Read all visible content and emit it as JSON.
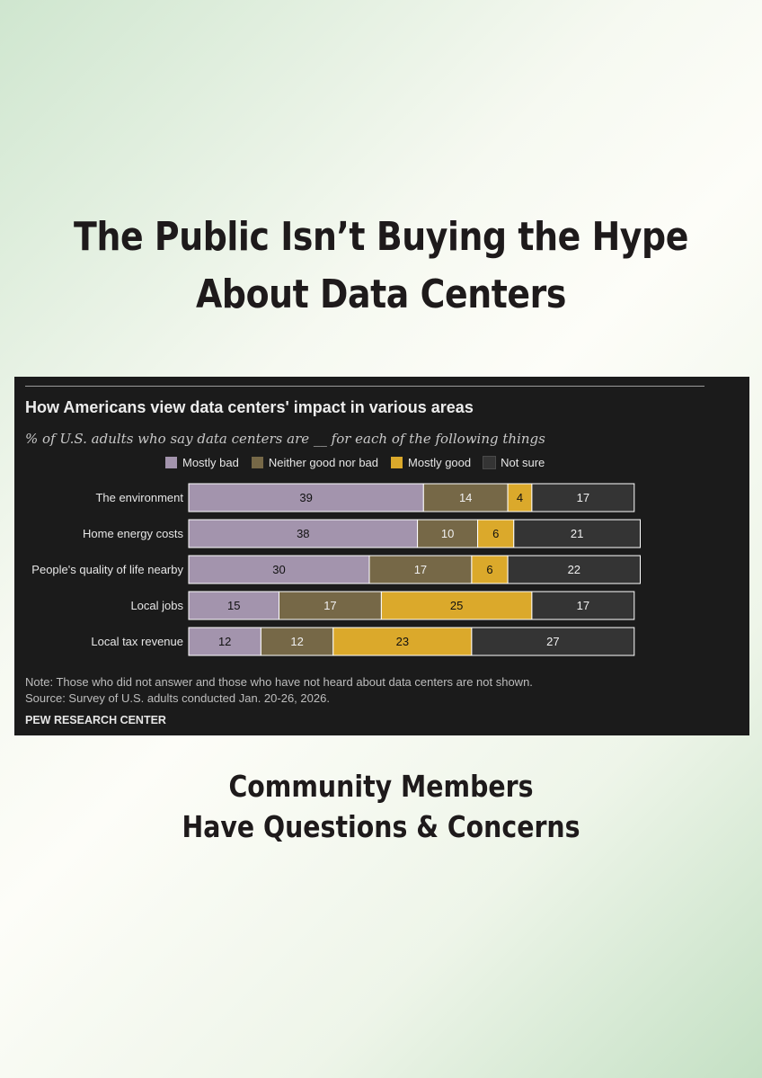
{
  "headline": {
    "line1": "The Public Isn’t Buying the Hype",
    "line2": "About Data Centers"
  },
  "subheadline": {
    "line1": "Community Members",
    "line2": "Have Questions & Concerns"
  },
  "chart_data": {
    "type": "bar",
    "orientation": "horizontal",
    "stacked": true,
    "title": "How Americans view data centers' impact in various areas",
    "subtitle": "% of U.S. adults who say data centers are __ for each of the following things",
    "categories": [
      "The environment",
      "Home energy costs",
      "People's quality of life nearby",
      "Local jobs",
      "Local tax revenue"
    ],
    "series": [
      {
        "name": "Mostly bad",
        "color": "#a394ad",
        "label_color": "#111111",
        "values": [
          39,
          38,
          30,
          15,
          12
        ]
      },
      {
        "name": "Neither good nor bad",
        "color": "#766847",
        "label_color": "#f0f0f0",
        "values": [
          14,
          10,
          17,
          17,
          12
        ]
      },
      {
        "name": "Mostly good",
        "color": "#dba92b",
        "label_color": "#111111",
        "values": [
          4,
          6,
          6,
          25,
          23
        ]
      },
      {
        "name": "Not sure",
        "color": "#343434",
        "label_color": "#f0f0f0",
        "values": [
          17,
          21,
          22,
          17,
          27
        ]
      }
    ],
    "xlim": [
      0,
      100
    ],
    "legend_position": "top",
    "grid": false,
    "note": "Note: Those who did not answer and those who have not heard about data centers are not shown.",
    "source": "Source: Survey of U.S. adults conducted Jan. 20-26, 2026.",
    "brand": "PEW RESEARCH CENTER"
  }
}
